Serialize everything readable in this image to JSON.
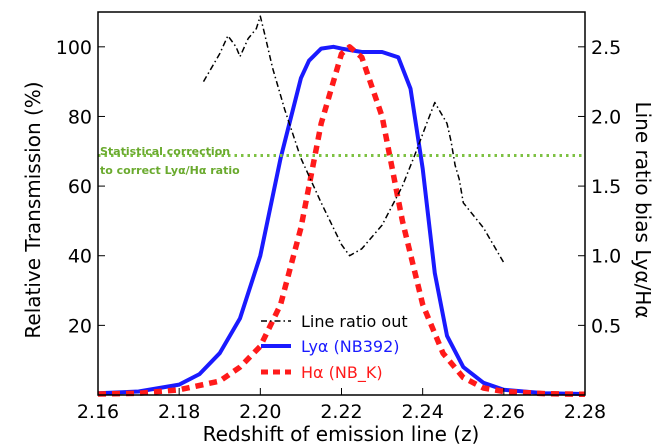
{
  "chart_data": {
    "type": "line",
    "xlabel": "Redshift of emission line (z)",
    "ylabel_left": "Relative Transmission (%)",
    "ylabel_right": "Line ratio bias Lyα/Hα",
    "xlim": [
      2.16,
      2.28
    ],
    "ylim_left": [
      0,
      110
    ],
    "ylim_right": [
      0,
      2.75
    ],
    "xticks": [
      "2.16",
      "2.18",
      "2.20",
      "2.22",
      "2.24",
      "2.26",
      "2.28"
    ],
    "xtick_values": [
      2.16,
      2.18,
      2.2,
      2.22,
      2.24,
      2.26,
      2.28
    ],
    "yticks_left": [
      "20",
      "40",
      "60",
      "80",
      "100"
    ],
    "ytick_values_left": [
      20,
      40,
      60,
      80,
      100
    ],
    "yticks_right": [
      "0.5",
      "1.0",
      "1.5",
      "2.0",
      "2.5"
    ],
    "ytick_values_right": [
      0.5,
      1.0,
      1.5,
      2.0,
      2.5
    ],
    "grid": false,
    "legend_position": "bottom-center",
    "annotation": {
      "lines": [
        "Statistical correction",
        "to correct Lyα/Hα ratio"
      ],
      "color": "#6aaa2e"
    },
    "hline": {
      "y_right": 1.72,
      "color": "#7dc142",
      "style": "dotted"
    },
    "series": [
      {
        "name": "Lyα (NB392)",
        "axis": "left",
        "color": "#1a1aff",
        "style": "solid",
        "x": [
          2.16,
          2.17,
          2.18,
          2.185,
          2.19,
          2.195,
          2.2,
          2.205,
          2.21,
          2.212,
          2.215,
          2.218,
          2.22,
          2.225,
          2.23,
          2.234,
          2.237,
          2.24,
          2.243,
          2.246,
          2.25,
          2.255,
          2.26,
          2.27,
          2.28
        ],
        "y": [
          0.5,
          1,
          3,
          6,
          12,
          22,
          40,
          68,
          91,
          96,
          99.5,
          100,
          99.5,
          98.5,
          98.5,
          97,
          88,
          65,
          35,
          17,
          8,
          3.5,
          1.5,
          0.5,
          0.3
        ]
      },
      {
        "name": "Hα (NB_K)",
        "axis": "left",
        "color": "#ff1a1a",
        "style": "dashed",
        "x": [
          2.16,
          2.17,
          2.18,
          2.19,
          2.195,
          2.2,
          2.205,
          2.21,
          2.215,
          2.22,
          2.222,
          2.225,
          2.23,
          2.235,
          2.24,
          2.245,
          2.25,
          2.255,
          2.26,
          2.27,
          2.28
        ],
        "y": [
          0.3,
          0.5,
          1.5,
          4,
          8,
          14,
          26,
          48,
          78,
          98,
          100,
          97,
          80,
          50,
          26,
          12,
          5,
          2,
          1,
          0.4,
          0.2
        ]
      },
      {
        "name": "Line ratio out",
        "axis": "right",
        "color": "#000000",
        "style": "dashdot",
        "x": [
          2.186,
          2.19,
          2.192,
          2.194,
          2.195,
          2.197,
          2.199,
          2.2,
          2.201,
          2.203,
          2.206,
          2.21,
          2.215,
          2.22,
          2.222,
          2.225,
          2.23,
          2.235,
          2.238,
          2.241,
          2.243,
          2.244,
          2.245,
          2.246,
          2.247,
          2.248,
          2.249,
          2.25,
          2.255,
          2.26
        ],
        "y": [
          2.25,
          2.45,
          2.58,
          2.5,
          2.43,
          2.56,
          2.63,
          2.72,
          2.6,
          2.35,
          2.05,
          1.7,
          1.38,
          1.08,
          1.0,
          1.05,
          1.22,
          1.5,
          1.72,
          1.95,
          2.1,
          2.05,
          2.0,
          1.95,
          1.82,
          1.65,
          1.55,
          1.38,
          1.2,
          0.95
        ]
      }
    ]
  }
}
